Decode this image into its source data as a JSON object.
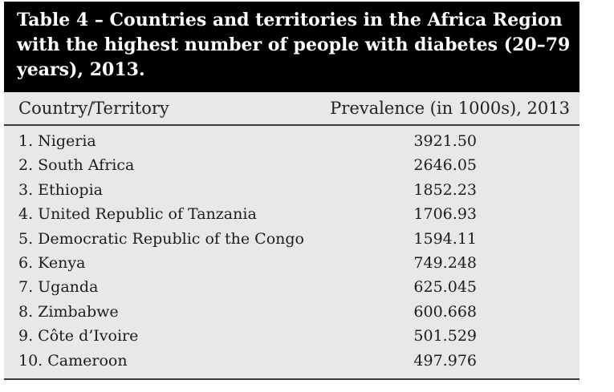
{
  "chart_data": {
    "type": "table",
    "title": "Table 4 – Countries and territories in the Africa Region with the highest number of people with diabetes (20–79 years), 2013.",
    "columns": [
      "Country/Territory",
      "Prevalence (in 1000s), 2013"
    ],
    "rows": [
      {
        "country": "1. Nigeria",
        "value": "3921.50"
      },
      {
        "country": "2. South Africa",
        "value": "2646.05"
      },
      {
        "country": "3. Ethiopia",
        "value": "1852.23"
      },
      {
        "country": "4. United Republic of Tanzania",
        "value": "1706.93"
      },
      {
        "country": "5. Democratic Republic of the Congo",
        "value": "1594.11"
      },
      {
        "country": "6. Kenya",
        "value": "749.248"
      },
      {
        "country": "7. Uganda",
        "value": "625.045"
      },
      {
        "country": "8. Zimbabwe",
        "value": "600.668"
      },
      {
        "country": "9. Côte d’Ivoire",
        "value": "501.529"
      },
      {
        "country": "10. Cameroon",
        "value": "497.976"
      }
    ]
  }
}
